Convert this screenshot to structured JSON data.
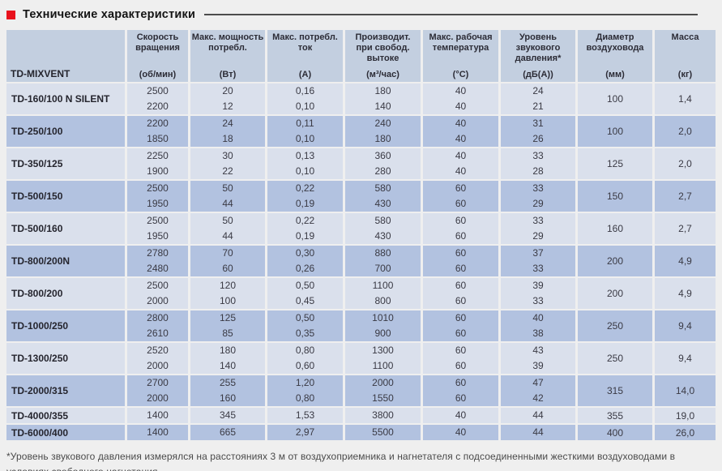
{
  "title": "Технические характеристики",
  "table": {
    "product_column_header": "TD-MIXVENT",
    "columns": [
      {
        "label": "Скорость вращения",
        "unit": "(об/мин)"
      },
      {
        "label": "Макс. мощность потребл.",
        "unit": "(Вт)"
      },
      {
        "label": "Макс. потребл. ток",
        "unit": "(А)"
      },
      {
        "label": "Производит. при свобод. вытоке",
        "unit": "(м³/час)"
      },
      {
        "label": "Макс. рабочая температура",
        "unit": "(°С)"
      },
      {
        "label": "Уровень звукового давления*",
        "unit": "(дБ(А))"
      },
      {
        "label": "Диаметр воздуховода",
        "unit": "(мм)"
      },
      {
        "label": "Масса",
        "unit": "(кг)"
      }
    ],
    "rows": [
      {
        "model": "TD-160/100 N SILENT",
        "values": [
          [
            "2500",
            "20",
            "0,16",
            "180",
            "40",
            "24"
          ],
          [
            "2200",
            "12",
            "0,10",
            "140",
            "40",
            "21"
          ]
        ],
        "diameter": "100",
        "mass": "1,4"
      },
      {
        "model": "TD-250/100",
        "values": [
          [
            "2200",
            "24",
            "0,11",
            "240",
            "40",
            "31"
          ],
          [
            "1850",
            "18",
            "0,10",
            "180",
            "40",
            "26"
          ]
        ],
        "diameter": "100",
        "mass": "2,0"
      },
      {
        "model": "TD-350/125",
        "values": [
          [
            "2250",
            "30",
            "0,13",
            "360",
            "40",
            "33"
          ],
          [
            "1900",
            "22",
            "0,10",
            "280",
            "40",
            "28"
          ]
        ],
        "diameter": "125",
        "mass": "2,0"
      },
      {
        "model": "TD-500/150",
        "values": [
          [
            "2500",
            "50",
            "0,22",
            "580",
            "60",
            "33"
          ],
          [
            "1950",
            "44",
            "0,19",
            "430",
            "60",
            "29"
          ]
        ],
        "diameter": "150",
        "mass": "2,7"
      },
      {
        "model": "TD-500/160",
        "values": [
          [
            "2500",
            "50",
            "0,22",
            "580",
            "60",
            "33"
          ],
          [
            "1950",
            "44",
            "0,19",
            "430",
            "60",
            "29"
          ]
        ],
        "diameter": "160",
        "mass": "2,7"
      },
      {
        "model": "TD-800/200N",
        "values": [
          [
            "2780",
            "70",
            "0,30",
            "880",
            "60",
            "37"
          ],
          [
            "2480",
            "60",
            "0,26",
            "700",
            "60",
            "33"
          ]
        ],
        "diameter": "200",
        "mass": "4,9"
      },
      {
        "model": "TD-800/200",
        "values": [
          [
            "2500",
            "120",
            "0,50",
            "1100",
            "60",
            "39"
          ],
          [
            "2000",
            "100",
            "0,45",
            "800",
            "60",
            "33"
          ]
        ],
        "diameter": "200",
        "mass": "4,9"
      },
      {
        "model": "TD-1000/250",
        "values": [
          [
            "2800",
            "125",
            "0,50",
            "1010",
            "60",
            "40"
          ],
          [
            "2610",
            "85",
            "0,35",
            "900",
            "60",
            "38"
          ]
        ],
        "diameter": "250",
        "mass": "9,4"
      },
      {
        "model": "TD-1300/250",
        "values": [
          [
            "2520",
            "180",
            "0,80",
            "1300",
            "60",
            "43"
          ],
          [
            "2000",
            "140",
            "0,60",
            "1100",
            "60",
            "39"
          ]
        ],
        "diameter": "250",
        "mass": "9,4"
      },
      {
        "model": "TD-2000/315",
        "values": [
          [
            "2700",
            "255",
            "1,20",
            "2000",
            "60",
            "47"
          ],
          [
            "2000",
            "160",
            "0,80",
            "1550",
            "60",
            "42"
          ]
        ],
        "diameter": "315",
        "mass": "14,0"
      },
      {
        "model": "TD-4000/355",
        "values": [
          [
            "1400",
            "345",
            "1,53",
            "3800",
            "40",
            "44"
          ]
        ],
        "diameter": "355",
        "mass": "19,0"
      },
      {
        "model": "TD-6000/400",
        "values": [
          [
            "1400",
            "665",
            "2,97",
            "5500",
            "40",
            "44"
          ]
        ],
        "diameter": "400",
        "mass": "26,0"
      }
    ]
  },
  "footnote": "*Уровень звукового давления измерялся на расстояниях 3 м от воздухоприемника и нагнетателя с подсоединенными жесткими воздуховодами в условиях свободного нагнетания."
}
